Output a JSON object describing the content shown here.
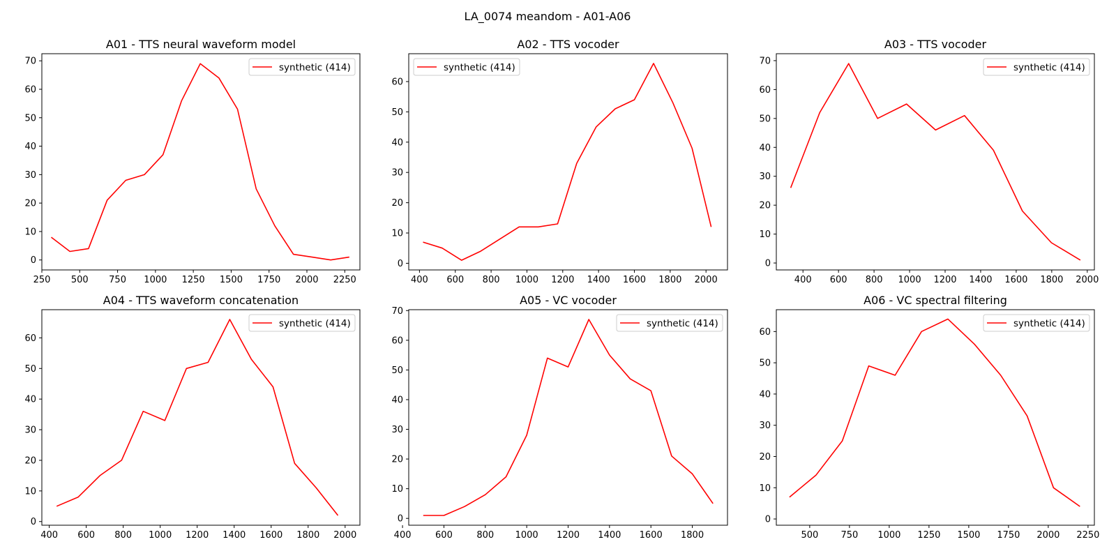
{
  "figure_title": "LA_0074 meandom - A01-A06",
  "colors": {
    "series": "#ff0000",
    "axes": "#000000",
    "legend_border": "#cccccc"
  },
  "chart_data": [
    {
      "type": "line",
      "title": "A01 - TTS neural waveform model",
      "xlabel": "",
      "ylabel": "",
      "xlim": [
        250,
        2350
      ],
      "ylim": [
        -3.5,
        72.5
      ],
      "xticks": [
        250,
        500,
        750,
        1000,
        1250,
        1500,
        1750,
        2000,
        2250
      ],
      "yticks": [
        0,
        10,
        20,
        30,
        40,
        50,
        60,
        70
      ],
      "legend": "top-right",
      "grid": false,
      "series": [
        {
          "name": "synthetic (414)",
          "color": "#ff0000",
          "x": [
            312,
            435,
            558,
            681,
            804,
            927,
            1050,
            1173,
            1296,
            1419,
            1542,
            1665,
            1788,
            1911,
            2034,
            2157,
            2280
          ],
          "y": [
            8,
            3,
            4,
            21,
            28,
            30,
            37,
            56,
            69,
            64,
            53,
            25,
            12,
            2,
            1,
            0,
            1
          ]
        }
      ]
    },
    {
      "type": "line",
      "title": "A02 - TTS vocoder",
      "xlabel": "",
      "ylabel": "",
      "xlim": [
        340,
        2120
      ],
      "ylim": [
        -2.2,
        69.2
      ],
      "xticks": [
        400,
        600,
        800,
        1000,
        1200,
        1400,
        1600,
        1800,
        2000
      ],
      "yticks": [
        0,
        10,
        20,
        30,
        40,
        50,
        60
      ],
      "legend": "top-left",
      "grid": false,
      "series": [
        {
          "name": "synthetic (414)",
          "color": "#ff0000",
          "x": [
            420,
            527,
            635,
            742,
            849,
            956,
            1064,
            1171,
            1278,
            1386,
            1493,
            1600,
            1707,
            1815,
            1922,
            2029
          ],
          "y": [
            7,
            5,
            1,
            4,
            8,
            12,
            12,
            13,
            33,
            45,
            51,
            54,
            66,
            53,
            38,
            12
          ]
        }
      ]
    },
    {
      "type": "line",
      "title": "A03 - TTS vocoder",
      "xlabel": "",
      "ylabel": "",
      "xlim": [
        250,
        2040
      ],
      "ylim": [
        -2.4,
        72.4
      ],
      "xticks": [
        400,
        600,
        800,
        1000,
        1200,
        1400,
        1600,
        1800,
        2000
      ],
      "yticks": [
        0,
        10,
        20,
        30,
        40,
        50,
        60,
        70
      ],
      "legend": "top-right",
      "grid": false,
      "series": [
        {
          "name": "synthetic (414)",
          "color": "#ff0000",
          "x": [
            331,
            494,
            657,
            820,
            983,
            1146,
            1309,
            1472,
            1635,
            1798,
            1961
          ],
          "y": [
            26,
            52,
            69,
            50,
            55,
            46,
            51,
            39,
            18,
            7,
            1
          ]
        }
      ]
    },
    {
      "type": "line",
      "title": "A04 - TTS waveform concatenation",
      "xlabel": "",
      "ylabel": "",
      "xlim": [
        360,
        2080
      ],
      "ylim": [
        -1.2,
        69.2
      ],
      "xticks": [
        400,
        600,
        800,
        1000,
        1200,
        1400,
        1600,
        1800,
        2000
      ],
      "yticks": [
        0,
        10,
        20,
        30,
        40,
        50,
        60
      ],
      "legend": "top-right",
      "grid": false,
      "series": [
        {
          "name": "synthetic (414)",
          "color": "#ff0000",
          "x": [
            440,
            557,
            674,
            791,
            908,
            1025,
            1142,
            1259,
            1376,
            1493,
            1610,
            1727,
            1844,
            1961
          ],
          "y": [
            5,
            8,
            15,
            20,
            36,
            33,
            50,
            52,
            66,
            53,
            44,
            19,
            11,
            2
          ]
        }
      ]
    },
    {
      "type": "line",
      "title": "A05 - VC vocoder",
      "xlabel": "",
      "ylabel": "",
      "xlim": [
        430,
        1970
      ],
      "ylim": [
        -2.3,
        70.3
      ],
      "xticks": [
        400,
        600,
        800,
        1000,
        1200,
        1400,
        1600,
        1800
      ],
      "yticks": [
        0,
        10,
        20,
        30,
        40,
        50,
        60,
        70
      ],
      "legend": "top-right",
      "grid": false,
      "series": [
        {
          "name": "synthetic (414)",
          "color": "#ff0000",
          "x": [
            500,
            600,
            700,
            800,
            900,
            1000,
            1100,
            1200,
            1300,
            1400,
            1500,
            1600,
            1700,
            1800,
            1900
          ],
          "y": [
            1,
            1,
            4,
            8,
            14,
            28,
            54,
            51,
            67,
            55,
            47,
            43,
            21,
            15,
            5
          ]
        }
      ]
    },
    {
      "type": "line",
      "title": "A06 - VC spectral filtering",
      "xlabel": "",
      "ylabel": "",
      "xlim": [
        290,
        2290
      ],
      "ylim": [
        -2.0,
        67.0
      ],
      "xticks": [
        500,
        750,
        1000,
        1250,
        1500,
        1750,
        2000,
        2250
      ],
      "yticks": [
        0,
        10,
        20,
        30,
        40,
        50,
        60
      ],
      "legend": "top-right",
      "grid": false,
      "series": [
        {
          "name": "synthetic (414)",
          "color": "#ff0000",
          "x": [
            373,
            539,
            705,
            871,
            1037,
            1203,
            1369,
            1535,
            1701,
            1867,
            2033,
            2199
          ],
          "y": [
            7,
            14,
            25,
            49,
            46,
            60,
            64,
            56,
            46,
            33,
            10,
            4
          ]
        }
      ]
    }
  ]
}
